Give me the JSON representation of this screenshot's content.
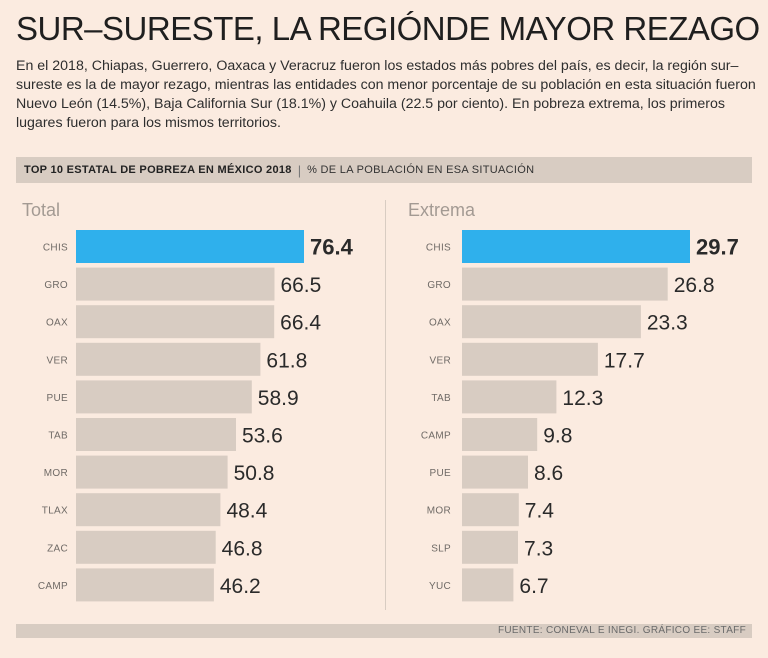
{
  "header": {
    "title": "SUR–SURESTE, LA REGIÓNDE MAYOR REZAGO",
    "description": "En el 2018, Chiapas, Guerrero, Oaxaca y Veracruz fueron los estados más pobres del país, es decir, la región sur–sureste es la de mayor rezago, mientras las entidades con menor porcentaje de su población en esta situación fueron Nuevo León (14.5%), Baja California Sur (18.1%) y Coahuila (22.5 por ciento). En pobreza extrema, los primeros lugares fueron para los mismos territorios.",
    "subtitle_bold": "TOP 10 ESTATAL DE POBREZA EN MÉXICO 2018",
    "subtitle_separator": "|",
    "subtitle_light": "% DE LA POBLACIÓN EN ESA SITUACIÓN",
    "source": "FUENTE: CONEVAL E INEGI. GRÁFICO EE: STAFF"
  },
  "colors": {
    "highlight": "#2fb0ec",
    "bar": "#d8ccc2",
    "background": "#fbebe0"
  },
  "chart_data": [
    {
      "type": "bar",
      "orientation": "horizontal",
      "title": "Total",
      "categories": [
        "CHIS",
        "GRO",
        "OAX",
        "VER",
        "PUE",
        "TAB",
        "MOR",
        "TLAX",
        "ZAC",
        "CAMP"
      ],
      "values": [
        76.4,
        66.5,
        66.4,
        61.8,
        58.9,
        53.6,
        50.8,
        48.4,
        46.8,
        46.2
      ],
      "highlight_index": 0,
      "data_labels": true,
      "grid": false
    },
    {
      "type": "bar",
      "orientation": "horizontal",
      "title": "Extrema",
      "categories": [
        "CHIS",
        "GRO",
        "OAX",
        "VER",
        "TAB",
        "CAMP",
        "PUE",
        "MOR",
        "SLP",
        "YUC"
      ],
      "values": [
        29.7,
        26.8,
        23.3,
        17.7,
        12.3,
        9.8,
        8.6,
        7.4,
        7.3,
        6.7
      ],
      "highlight_index": 0,
      "data_labels": true,
      "grid": false
    }
  ]
}
